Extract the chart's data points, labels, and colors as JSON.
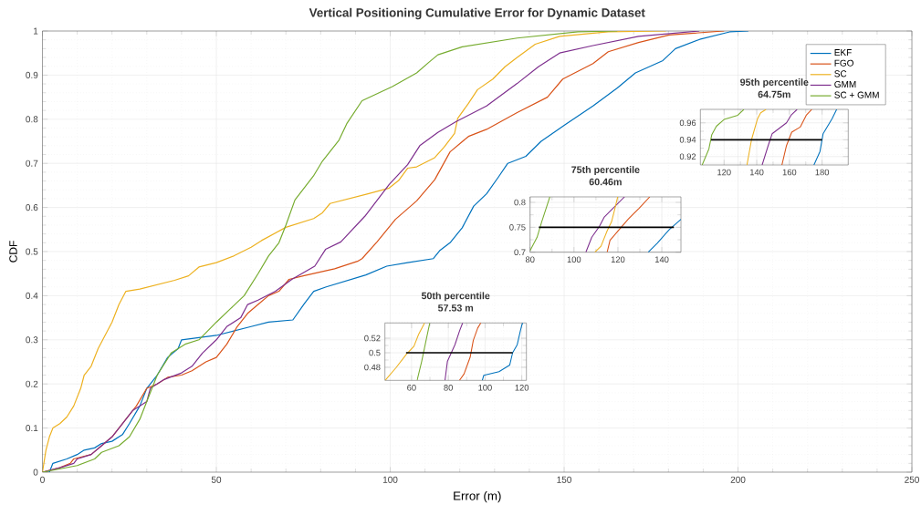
{
  "chart_data": [
    {
      "type": "line",
      "title": "Vertical Positioning Cumulative Error for Dynamic Dataset",
      "xlabel": "Error (m)",
      "ylabel": "CDF",
      "xlim": [
        0,
        250
      ],
      "ylim": [
        0,
        1
      ],
      "xticks": [
        0,
        50,
        100,
        150,
        200,
        250
      ],
      "yticks": [
        0,
        0.1,
        0.2,
        0.3,
        0.4,
        0.5,
        0.6,
        0.7,
        0.8,
        0.9,
        1
      ],
      "grid": true,
      "legend": "top right",
      "series": [
        {
          "name": "EKF",
          "color": "#0072bd",
          "x": [
            0,
            2,
            3,
            7,
            10,
            12,
            15,
            17,
            20,
            23,
            25,
            28,
            30,
            33,
            36,
            39,
            40,
            50,
            55,
            60,
            65,
            72,
            75.3,
            78,
            81.6,
            93,
            99,
            105,
            112.4,
            114.2,
            117.2,
            120.7,
            124,
            127.7,
            131.2,
            133.8,
            139,
            143.4,
            150.4,
            158.3,
            165.3,
            170.5,
            178.4,
            182,
            189,
            197.6,
            203
          ],
          "values": [
            0,
            0,
            0.02,
            0.03,
            0.04,
            0.05,
            0.055,
            0.065,
            0.07,
            0.085,
            0.11,
            0.15,
            0.19,
            0.22,
            0.26,
            0.28,
            0.3,
            0.31,
            0.32,
            0.33,
            0.34,
            0.345,
            0.382,
            0.41,
            0.42,
            0.447,
            0.467,
            0.475,
            0.484,
            0.502,
            0.52,
            0.554,
            0.603,
            0.631,
            0.67,
            0.7,
            0.716,
            0.75,
            0.788,
            0.83,
            0.871,
            0.905,
            0.933,
            0.96,
            0.981,
            0.998,
            1
          ]
        },
        {
          "name": "FGO",
          "color": "#d95319",
          "x": [
            0,
            5,
            8,
            9,
            14,
            17,
            20,
            24,
            27,
            30,
            33,
            36,
            40,
            43,
            47,
            50,
            53,
            56,
            59,
            62,
            65,
            68,
            70.9,
            75,
            84,
            90.6,
            91.9,
            96.2,
            101.5,
            107.6,
            112.8,
            117.2,
            122.5,
            127.7,
            136.5,
            145.2,
            149.6,
            158.3,
            162.7,
            171.4,
            180.2,
            196
          ],
          "values": [
            0,
            0.01,
            0.02,
            0.03,
            0.04,
            0.06,
            0.08,
            0.12,
            0.15,
            0.19,
            0.2,
            0.215,
            0.22,
            0.23,
            0.25,
            0.26,
            0.29,
            0.33,
            0.36,
            0.38,
            0.4,
            0.41,
            0.437,
            0.445,
            0.461,
            0.478,
            0.484,
            0.522,
            0.573,
            0.615,
            0.663,
            0.726,
            0.761,
            0.777,
            0.815,
            0.85,
            0.891,
            0.926,
            0.953,
            0.974,
            0.991,
            1
          ]
        },
        {
          "name": "SC",
          "color": "#edb120",
          "x": [
            0,
            1,
            2,
            3,
            5,
            7,
            9,
            11,
            12,
            14,
            16,
            18,
            20,
            22,
            24,
            28,
            33,
            38,
            42,
            45,
            50,
            55,
            60,
            63,
            70,
            78,
            80.5,
            82.7,
            93.6,
            99.7,
            102.4,
            105,
            107.6,
            112.8,
            115.5,
            118.5,
            119.4,
            122.5,
            125.1,
            129.5,
            133,
            136.5,
            141.7,
            148.7,
            162.7,
            179.3
          ],
          "values": [
            0,
            0.05,
            0.08,
            0.1,
            0.11,
            0.125,
            0.15,
            0.19,
            0.22,
            0.24,
            0.28,
            0.31,
            0.34,
            0.38,
            0.41,
            0.415,
            0.425,
            0.435,
            0.445,
            0.465,
            0.475,
            0.49,
            0.51,
            0.525,
            0.555,
            0.575,
            0.588,
            0.609,
            0.631,
            0.644,
            0.661,
            0.689,
            0.692,
            0.713,
            0.737,
            0.768,
            0.802,
            0.836,
            0.867,
            0.891,
            0.919,
            0.94,
            0.97,
            0.988,
            0.998,
            1
          ]
        },
        {
          "name": "GMM",
          "color": "#7e2f8e",
          "x": [
            0,
            5,
            9,
            10,
            14,
            17,
            20,
            23,
            26,
            30,
            31,
            35,
            40,
            43,
            46,
            50,
            53,
            57,
            59,
            62,
            67,
            71.7,
            78.3,
            81.4,
            85.8,
            92.7,
            99.7,
            105,
            108.5,
            113.7,
            119,
            127.7,
            136.5,
            142.6,
            148.7,
            158.3,
            171.4,
            188.9
          ],
          "values": [
            0,
            0.01,
            0.02,
            0.03,
            0.04,
            0.06,
            0.08,
            0.11,
            0.14,
            0.16,
            0.19,
            0.21,
            0.225,
            0.24,
            0.27,
            0.3,
            0.33,
            0.35,
            0.38,
            0.39,
            0.41,
            0.437,
            0.467,
            0.505,
            0.522,
            0.58,
            0.652,
            0.697,
            0.74,
            0.77,
            0.795,
            0.83,
            0.881,
            0.919,
            0.95,
            0.967,
            0.988,
            1
          ]
        },
        {
          "name": "SC + GMM",
          "color": "#77ac30",
          "x": [
            0,
            10,
            15,
            17,
            22,
            25,
            28,
            30,
            33,
            37,
            41,
            45,
            50,
            54,
            58,
            62,
            65,
            68,
            70,
            72.6,
            77.9,
            80.5,
            85.3,
            87.5,
            91.9,
            100.6,
            107.6,
            111.1,
            113.7,
            120.7,
            136.5,
            154,
            165.3
          ],
          "values": [
            0,
            0.015,
            0.03,
            0.045,
            0.06,
            0.08,
            0.12,
            0.16,
            0.22,
            0.27,
            0.29,
            0.3,
            0.34,
            0.37,
            0.4,
            0.45,
            0.49,
            0.52,
            0.56,
            0.617,
            0.671,
            0.705,
            0.753,
            0.79,
            0.842,
            0.874,
            0.905,
            0.929,
            0.946,
            0.964,
            0.984,
            0.998,
            1
          ]
        }
      ]
    },
    {
      "type": "line",
      "title": "95th percentile",
      "subtitle": "64.75m",
      "xlim": [
        105.5,
        196
      ],
      "ylim": [
        0.91,
        0.976
      ],
      "xticks": [
        120,
        140,
        160,
        180
      ],
      "yticks": [
        0.92,
        0.94,
        0.96
      ],
      "grid": true,
      "series": [
        {
          "color": "#77ac30",
          "x": [
            106.6,
            110.7,
            112.5,
            115.3,
            120,
            128.4,
            132.1
          ],
          "values": [
            0.91,
            0.929,
            0.946,
            0.956,
            0.964,
            0.969,
            0.976
          ]
        },
        {
          "color": "#edb120",
          "x": [
            134,
            136.8,
            140.5,
            142.4,
            145.7
          ],
          "values": [
            0.91,
            0.94,
            0.965,
            0.972,
            0.976
          ]
        },
        {
          "color": "#7e2f8e",
          "x": [
            143.3,
            147,
            149.4,
            158.2,
            161,
            164.7
          ],
          "values": [
            0.91,
            0.933,
            0.947,
            0.96,
            0.969,
            0.976
          ]
        },
        {
          "color": "#d95319",
          "x": [
            155.4,
            158.2,
            161.4,
            166.6,
            170.3,
            173.7
          ],
          "values": [
            0.91,
            0.933,
            0.949,
            0.955,
            0.969,
            0.976
          ]
        },
        {
          "color": "#0072bd",
          "x": [
            175,
            178.7,
            180.6,
            186.1,
            188.9
          ],
          "values": [
            0.91,
            0.926,
            0.947,
            0.965,
            0.976
          ]
        },
        {
          "color": "#000000",
          "x": [
            112,
            180
          ],
          "values": [
            0.94,
            0.94
          ]
        }
      ]
    },
    {
      "type": "line",
      "title": "75th percentile",
      "subtitle": "60.46m",
      "xlim": [
        80,
        148.7
      ],
      "ylim": [
        0.7,
        0.811
      ],
      "xticks": [
        80,
        100,
        120,
        140
      ],
      "yticks": [
        0.7,
        0.75,
        0.8
      ],
      "grid": true,
      "series": [
        {
          "color": "#77ac30",
          "x": [
            80,
            83.2,
            85.3,
            87.3,
            89
          ],
          "values": [
            0.703,
            0.73,
            0.761,
            0.788,
            0.811
          ]
        },
        {
          "color": "#7e2f8e",
          "x": [
            105.4,
            108.1,
            111.6,
            113.7,
            117.1,
            123
          ],
          "values": [
            0.7,
            0.73,
            0.752,
            0.77,
            0.785,
            0.811
          ]
        },
        {
          "color": "#edb120",
          "x": [
            109.5,
            112.3,
            115.1,
            117.1,
            118.5,
            119.9
          ],
          "values": [
            0.7,
            0.712,
            0.743,
            0.761,
            0.785,
            0.811
          ]
        },
        {
          "color": "#d95319",
          "x": [
            115.1,
            116.4,
            121.3,
            124.8,
            129.6,
            134.5
          ],
          "values": [
            0.7,
            0.724,
            0.749,
            0.767,
            0.788,
            0.811
          ]
        },
        {
          "color": "#0072bd",
          "x": [
            133.8,
            137.9,
            143.5,
            148.7
          ],
          "values": [
            0.7,
            0.718,
            0.746,
            0.766
          ]
        },
        {
          "color": "#000000",
          "x": [
            84,
            145.5
          ],
          "values": [
            0.75,
            0.75
          ]
        }
      ]
    },
    {
      "type": "line",
      "title": "50th percentile",
      "subtitle": "57.53 m",
      "xlim": [
        45.5,
        122.5
      ],
      "ylim": [
        0.462,
        0.541
      ],
      "xticks": [
        60,
        80,
        100,
        120
      ],
      "yticks": [
        0.48,
        0.5,
        0.52
      ],
      "grid": true,
      "series": [
        {
          "color": "#edb120",
          "x": [
            45.6,
            51.4,
            57.2,
            61.3,
            63.8,
            67.1
          ],
          "values": [
            0.462,
            0.479,
            0.498,
            0.509,
            0.525,
            0.541
          ]
        },
        {
          "color": "#77ac30",
          "x": [
            63,
            65.5,
            67.9,
            69.9
          ],
          "values": [
            0.462,
            0.488,
            0.517,
            0.541
          ]
        },
        {
          "color": "#7e2f8e",
          "x": [
            78.2,
            79.5,
            83.6,
            86.1,
            87.8
          ],
          "values": [
            0.462,
            0.488,
            0.511,
            0.53,
            0.541
          ]
        },
        {
          "color": "#d95319",
          "x": [
            86.1,
            88.6,
            91.9,
            93.6,
            96,
            97.7
          ],
          "values": [
            0.462,
            0.471,
            0.494,
            0.517,
            0.534,
            0.541
          ]
        },
        {
          "color": "#0072bd",
          "x": [
            98.5,
            99.3,
            107.6,
            113.4,
            115,
            117.5,
            119.2,
            120,
            120.5
          ],
          "values": [
            0.462,
            0.469,
            0.474,
            0.483,
            0.5,
            0.511,
            0.53,
            0.538,
            0.541
          ]
        },
        {
          "color": "#000000",
          "x": [
            57,
            115
          ],
          "values": [
            0.5,
            0.5
          ]
        }
      ]
    }
  ]
}
